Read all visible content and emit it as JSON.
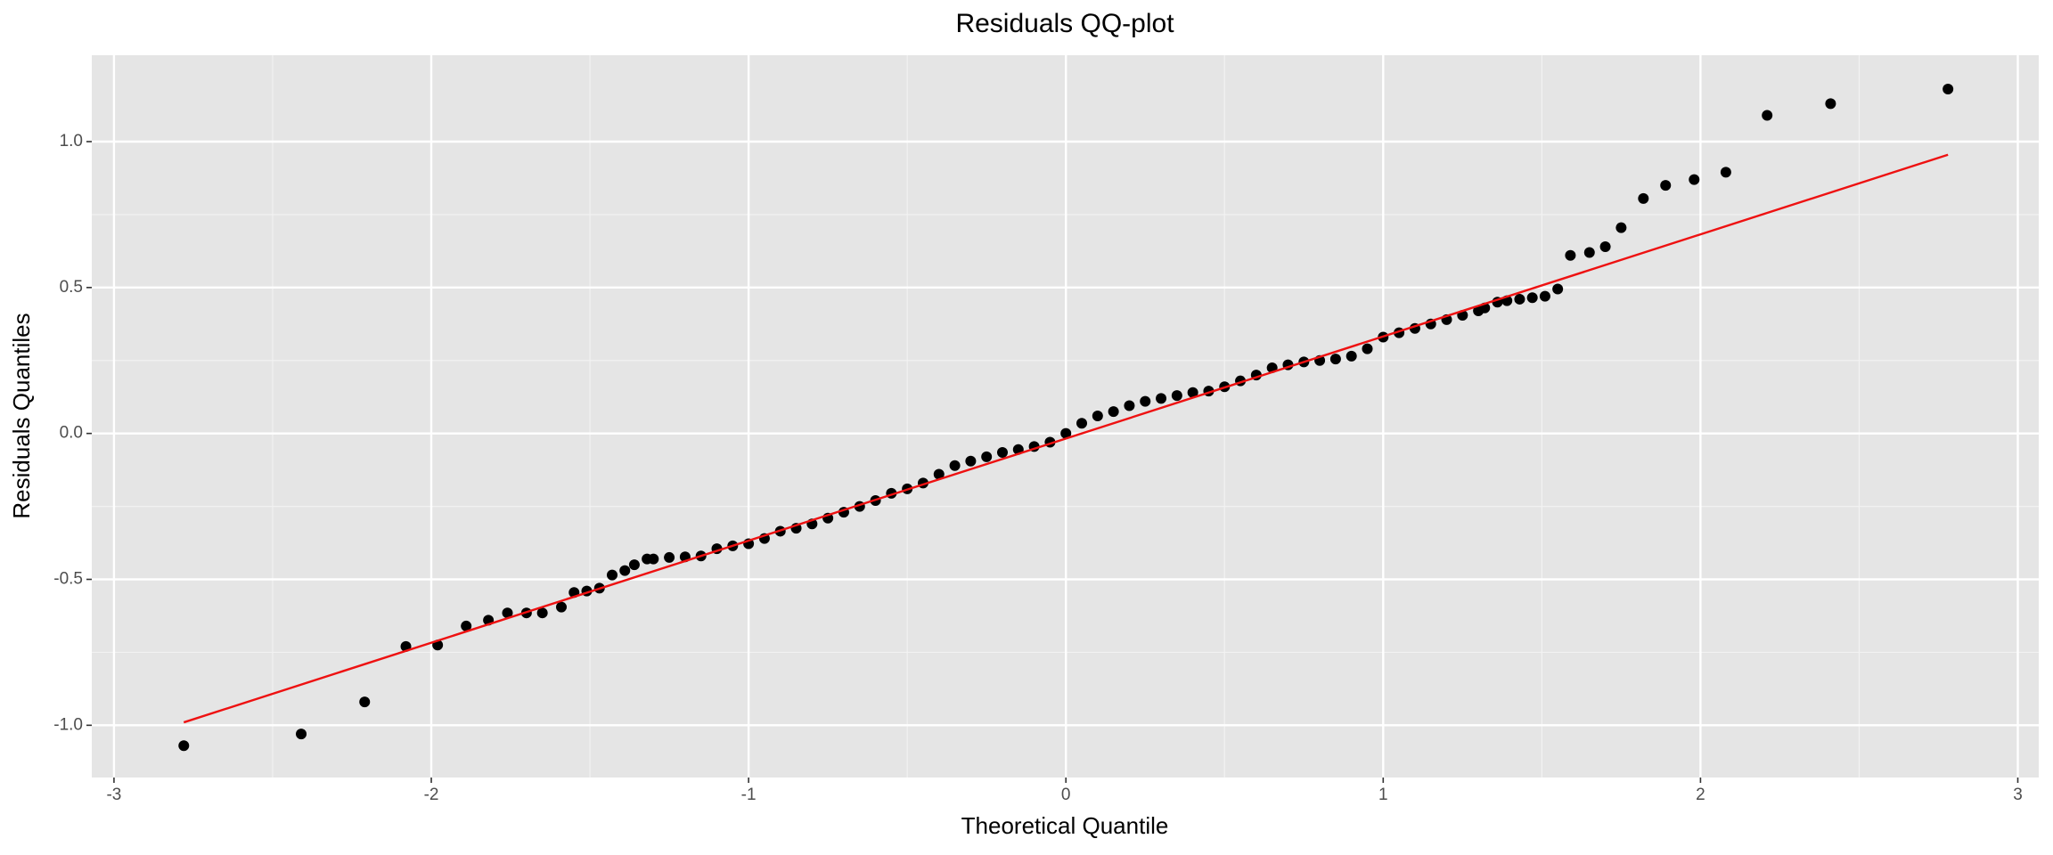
{
  "chart_data": {
    "type": "scatter",
    "title": "Residuals QQ-plot",
    "x_label": "Theoretical Quantile",
    "y_label": "Residuals Quantiles",
    "x": [
      -2.78,
      -2.41,
      -2.21,
      -2.08,
      -1.98,
      -1.89,
      -1.82,
      -1.76,
      -1.7,
      -1.65,
      -1.59,
      -1.55,
      -1.51,
      -1.47,
      -1.43,
      -1.39,
      -1.36,
      -1.32,
      -1.3,
      -1.25,
      -1.2,
      -1.15,
      -1.1,
      -1.05,
      -1.0,
      -0.95,
      -0.9,
      -0.85,
      -0.8,
      -0.75,
      -0.7,
      -0.65,
      -0.6,
      -0.55,
      -0.5,
      -0.45,
      -0.4,
      -0.35,
      -0.3,
      -0.25,
      -0.2,
      -0.15,
      -0.1,
      -0.05,
      0.0,
      0.05,
      0.1,
      0.15,
      0.2,
      0.25,
      0.3,
      0.35,
      0.4,
      0.45,
      0.5,
      0.55,
      0.6,
      0.65,
      0.7,
      0.75,
      0.8,
      0.85,
      0.9,
      0.95,
      1.0,
      1.05,
      1.1,
      1.15,
      1.2,
      1.25,
      1.3,
      1.32,
      1.36,
      1.39,
      1.43,
      1.47,
      1.51,
      1.55,
      1.59,
      1.65,
      1.7,
      1.75,
      1.82,
      1.89,
      1.98,
      2.08,
      2.21,
      2.41,
      2.78
    ],
    "values": [
      -1.07,
      -1.03,
      -0.92,
      -0.73,
      -0.725,
      -0.66,
      -0.64,
      -0.615,
      -0.615,
      -0.615,
      -0.595,
      -0.545,
      -0.54,
      -0.53,
      -0.485,
      -0.47,
      -0.45,
      -0.43,
      -0.43,
      -0.425,
      -0.423,
      -0.42,
      -0.395,
      -0.385,
      -0.378,
      -0.36,
      -0.335,
      -0.325,
      -0.31,
      -0.29,
      -0.27,
      -0.25,
      -0.23,
      -0.205,
      -0.19,
      -0.17,
      -0.14,
      -0.11,
      -0.095,
      -0.08,
      -0.065,
      -0.055,
      -0.045,
      -0.03,
      0.0,
      0.035,
      0.06,
      0.075,
      0.095,
      0.11,
      0.12,
      0.13,
      0.14,
      0.145,
      0.16,
      0.18,
      0.2,
      0.225,
      0.235,
      0.245,
      0.25,
      0.255,
      0.265,
      0.29,
      0.33,
      0.345,
      0.36,
      0.375,
      0.39,
      0.405,
      0.42,
      0.43,
      0.45,
      0.455,
      0.46,
      0.465,
      0.47,
      0.495,
      0.61,
      0.62,
      0.64,
      0.705,
      0.805,
      0.85,
      0.87,
      0.895,
      1.09,
      1.13,
      1.18
    ],
    "color": "#000000",
    "reference_line": {
      "x": [
        -2.78,
        2.78
      ],
      "values": [
        -0.99,
        0.955
      ],
      "color": "#ee1111"
    },
    "xlim": [
      -3.07,
      3.066
    ],
    "ylim": [
      -1.179,
      1.296
    ],
    "xticks": [
      -3,
      -2,
      -1,
      0,
      1,
      2,
      3
    ],
    "yticks": [
      {
        "value": -1,
        "label": "-1.0"
      },
      -0.5,
      {
        "value": 0,
        "label": "0.0"
      },
      0.5,
      {
        "value": 1,
        "label": "1.0"
      }
    ],
    "x_minor_ticks": [
      -2.5,
      -1.5,
      -0.5,
      0.5,
      1.5,
      2.5
    ],
    "y_minor_ticks": [
      -0.75,
      -0.25,
      0.25,
      0.75
    ],
    "grid": true
  }
}
